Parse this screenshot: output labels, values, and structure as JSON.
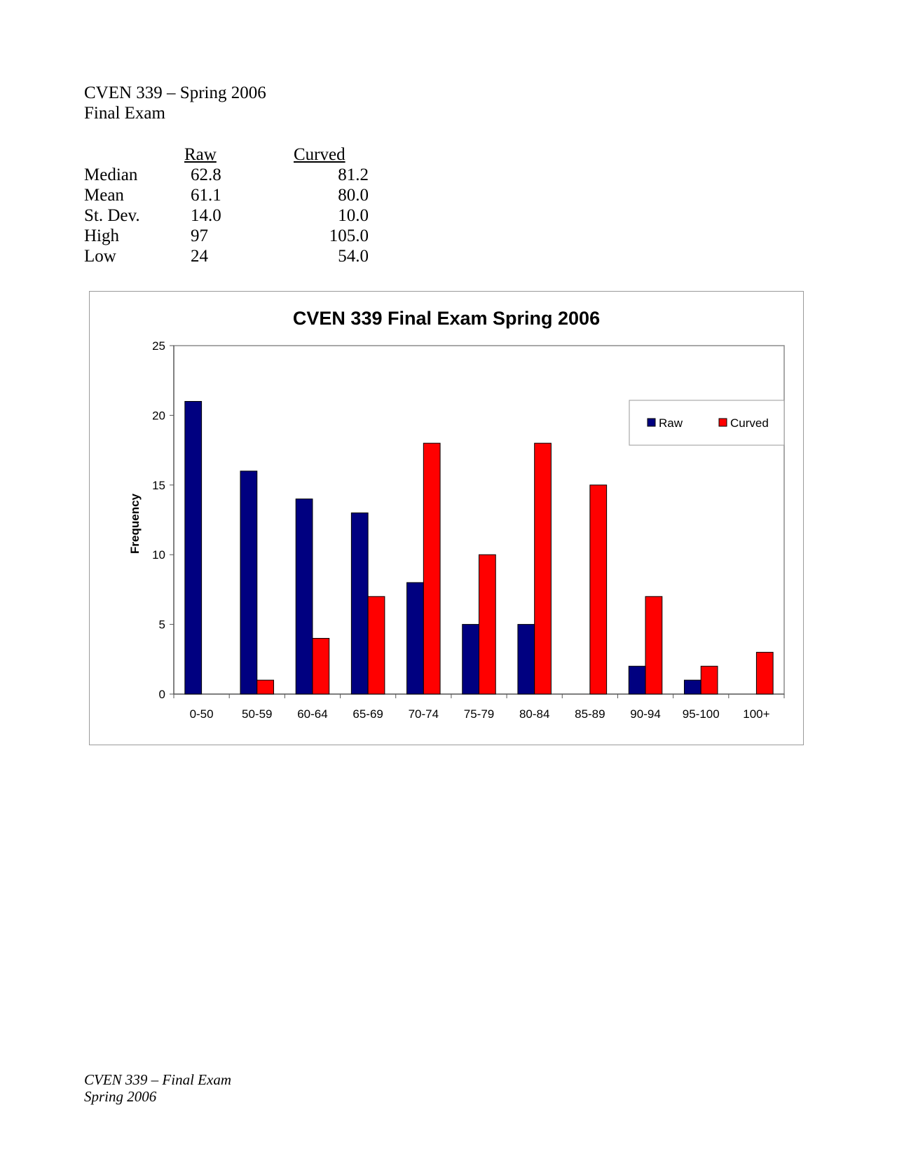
{
  "header": {
    "line1": "CVEN 339 – Spring 2006",
    "line2": "Final Exam"
  },
  "stats": {
    "raw_header": "Raw",
    "curved_header": "Curved",
    "rows": [
      {
        "label": "Median",
        "raw": "62.8",
        "curved": "81.2"
      },
      {
        "label": "Mean",
        "raw": "61.1",
        "curved": "80.0"
      },
      {
        "label": "St. Dev.",
        "raw": "14.0",
        "curved": "10.0"
      },
      {
        "label": "High",
        "raw": "97",
        "curved": "105.0"
      },
      {
        "label": "Low",
        "raw": "24",
        "curved": "54.0"
      }
    ]
  },
  "chart_data": {
    "type": "bar",
    "title": "CVEN 339 Final Exam Spring 2006",
    "xlabel": "",
    "ylabel": "Frequency",
    "ylim": [
      0,
      25
    ],
    "yticks": [
      0,
      5,
      10,
      15,
      20,
      25
    ],
    "categories": [
      "0-50",
      "50-59",
      "60-64",
      "65-69",
      "70-74",
      "75-79",
      "80-84",
      "85-89",
      "90-94",
      "95-100",
      "100+"
    ],
    "series": [
      {
        "name": "Raw",
        "color": "#000080",
        "values": [
          21,
          16,
          14,
          13,
          8,
          5,
          5,
          0,
          2,
          1,
          0
        ]
      },
      {
        "name": "Curved",
        "color": "#ff0000",
        "values": [
          0,
          1,
          4,
          7,
          18,
          10,
          18,
          15,
          7,
          2,
          3
        ]
      }
    ],
    "legend_position": "top-right",
    "grid": false
  },
  "footer": {
    "line1": "CVEN 339 – Final Exam",
    "line2": "Spring 2006"
  }
}
